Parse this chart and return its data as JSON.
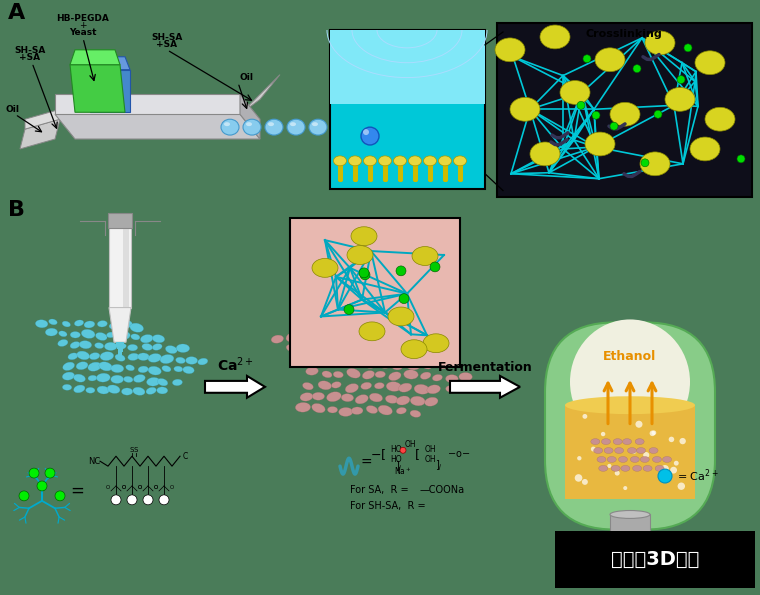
{
  "bg_color": "#4a7c59",
  "panel_A_label": "A",
  "panel_B_label": "B",
  "labels": {
    "HB_PEGDA": "HB-PEGDA",
    "plus": "+",
    "yeast": "Yeast",
    "SH_SA_left": "SH-SA\n+SA",
    "SH_SA_right": "SH-SA\n+SA",
    "oil1": "Oil",
    "oil2": "Oil",
    "crosslinking": "Crosslinking",
    "ca2plus": "Ca$^{2+}$",
    "fermentation": "Fermentation",
    "ethanol": "Ethanol",
    "for_SA": "For SA,  R =   —COONa",
    "for_SHSA": "For SH-SA,  R =",
    "watermark": "南极熊3D打印",
    "ca2plus_legend": "= Ca$^{2+}$"
  },
  "watermark_bg": "#000000",
  "watermark_color": "#ffffff",
  "nozzle_color": "#e8e8e8",
  "nozzle_edge": "#aaaaaa",
  "scaffold_cyan": "#5bc8dc",
  "scaffold_cyan_edge": "#3aA0be",
  "scaffold_pink": "#c89090",
  "scaffold_pink_edge": "#a06868",
  "flask_green": "#88cc88",
  "flask_inner": "#f0f0e0",
  "flask_liquid": "#e8b840",
  "ethanol_arrow": "#e89000",
  "ca_arrow_fill": "#ffffff",
  "ca_dot_color": "#00c0e8"
}
